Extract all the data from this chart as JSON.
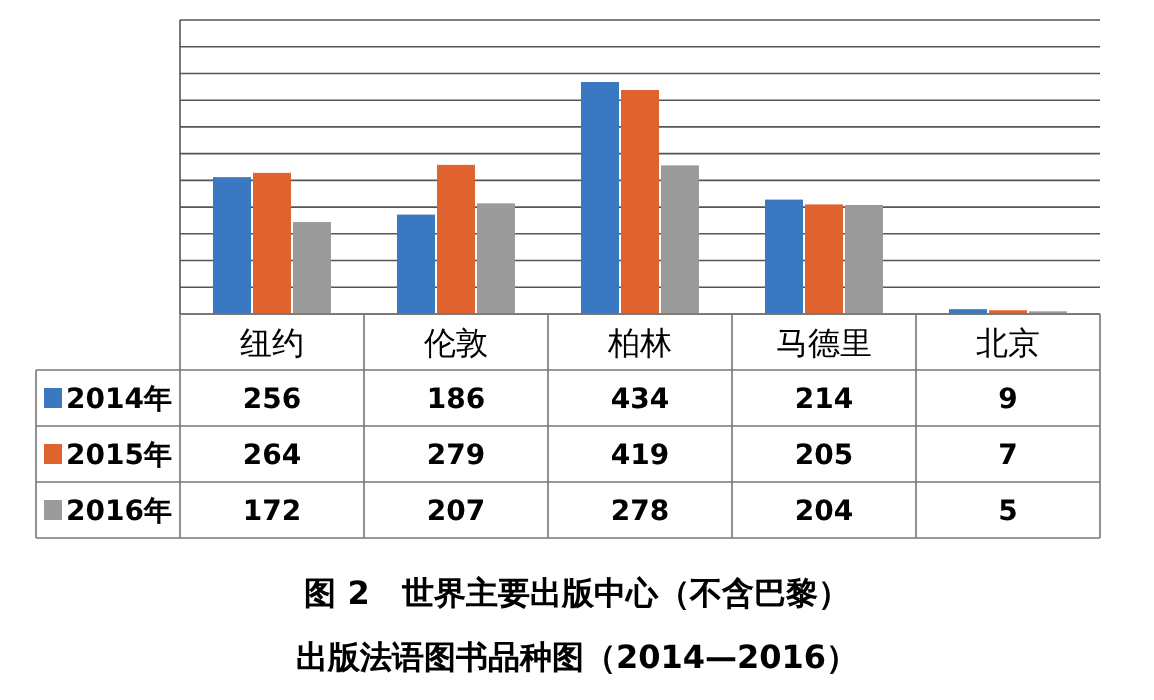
{
  "chart_data": {
    "type": "bar",
    "title": "图 2　世界主要出版中心（不含巴黎）",
    "subtitle": "出版法语图书品种图（2014—2016）",
    "categories": [
      "纽约",
      "伦敦",
      "柏林",
      "马德里",
      "北京"
    ],
    "series": [
      {
        "name": "2014年",
        "color": "#3b78c2",
        "values": [
          256,
          186,
          434,
          214,
          9
        ]
      },
      {
        "name": "2015年",
        "color": "#e0622e",
        "values": [
          264,
          279,
          419,
          205,
          7
        ]
      },
      {
        "name": "2016年",
        "color": "#9b9b9b",
        "values": [
          172,
          207,
          278,
          204,
          5
        ]
      }
    ],
    "ylim": [
      0,
      550
    ],
    "yticks": [
      {
        "value": 0,
        "label": null
      },
      {
        "value": 50,
        "label": null
      },
      {
        "value": 100,
        "label": null
      },
      {
        "value": 150,
        "label": null
      },
      {
        "value": 200,
        "label": null
      },
      {
        "value": 250,
        "label": null
      },
      {
        "value": 300,
        "label": null
      },
      {
        "value": 350,
        "label": null
      },
      {
        "value": 400,
        "label": null
      },
      {
        "value": 450,
        "label": null
      },
      {
        "value": 500,
        "label": null
      },
      {
        "value": 550,
        "label": null
      }
    ],
    "grid": "y",
    "legend": "left",
    "data_labels": true
  }
}
